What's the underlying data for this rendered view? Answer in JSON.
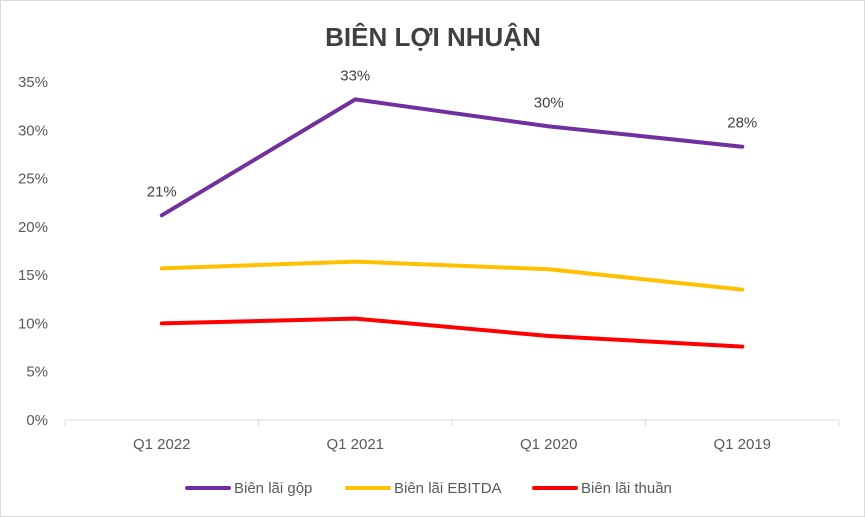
{
  "chart_data": {
    "type": "line",
    "title": "BIÊN LỢI NHUẬN",
    "categories": [
      "Q1 2022",
      "Q1 2021",
      "Q1 2020",
      "Q1 2019"
    ],
    "y_ticks": [
      "0%",
      "5%",
      "10%",
      "15%",
      "20%",
      "25%",
      "30%",
      "35%"
    ],
    "ylim": [
      0,
      35
    ],
    "grid": false,
    "legend_position": "bottom",
    "series": [
      {
        "name": "Biên lãi gộp",
        "color": "#7030a0",
        "values": [
          21.2,
          33.2,
          30.4,
          28.3
        ],
        "data_labels": [
          "21%",
          "33%",
          "30%",
          "28%"
        ]
      },
      {
        "name": "Biên lãi EBITDA",
        "color": "#ffc000",
        "values": [
          15.7,
          16.4,
          15.6,
          13.5
        ]
      },
      {
        "name": "Biên lãi thuần",
        "color": "#ff0000",
        "values": [
          10.0,
          10.5,
          8.7,
          7.6
        ]
      }
    ]
  }
}
